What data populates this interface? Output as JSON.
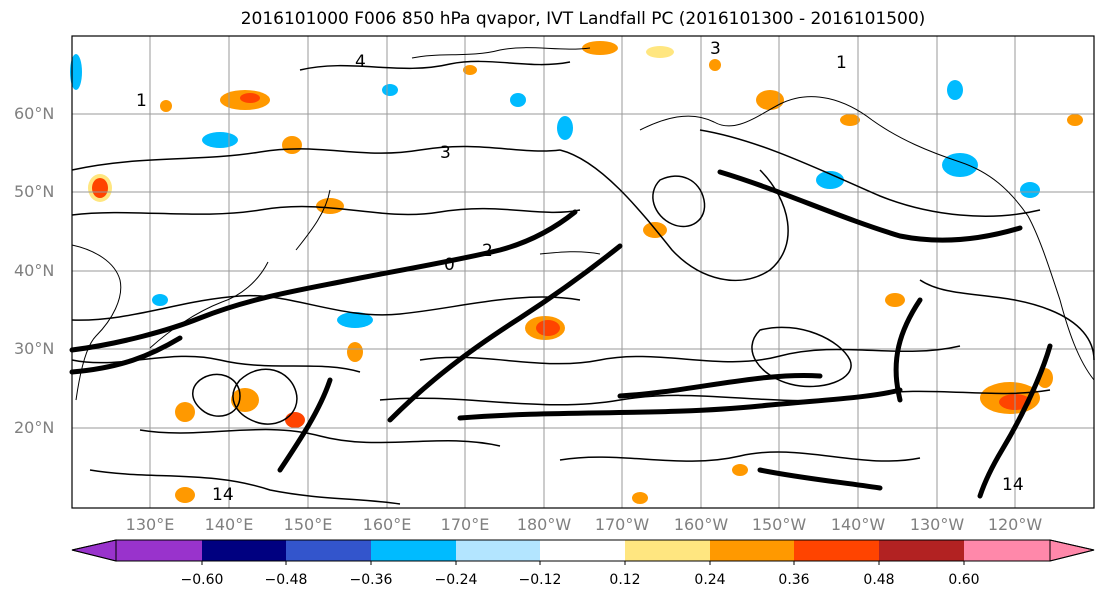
{
  "title": "2016101000 F006 850 hPa qvapor, IVT Landfall PC (2016101300 - 2016101500)",
  "lat_labels": [
    "60°N",
    "50°N",
    "40°N",
    "30°N",
    "20°N"
  ],
  "lon_labels": [
    "130°E",
    "140°E",
    "150°E",
    "160°E",
    "170°E",
    "180°W",
    "170°W",
    "160°W",
    "150°W",
    "140°W",
    "130°W",
    "120°W"
  ],
  "contour_labels": [
    "4",
    "3",
    "1",
    "1",
    "3",
    "2",
    "0",
    "14",
    "14"
  ],
  "colorbar": {
    "ticks": [
      "−0.60",
      "−0.48",
      "−0.36",
      "−0.24",
      "−0.12",
      "0.12",
      "0.24",
      "0.36",
      "0.48",
      "0.60"
    ],
    "colors": [
      "#9933cc",
      "#000080",
      "#3355cc",
      "#00bbff",
      "#b3e5ff",
      "#ffffff",
      "#ffe680",
      "#ff9900",
      "#ff4400",
      "#b22222",
      "#ff88aa"
    ]
  },
  "colors": {
    "contour": "#000000",
    "grid": "#9a9a9a",
    "coast": "#000000",
    "label_gray": "#808080"
  }
}
